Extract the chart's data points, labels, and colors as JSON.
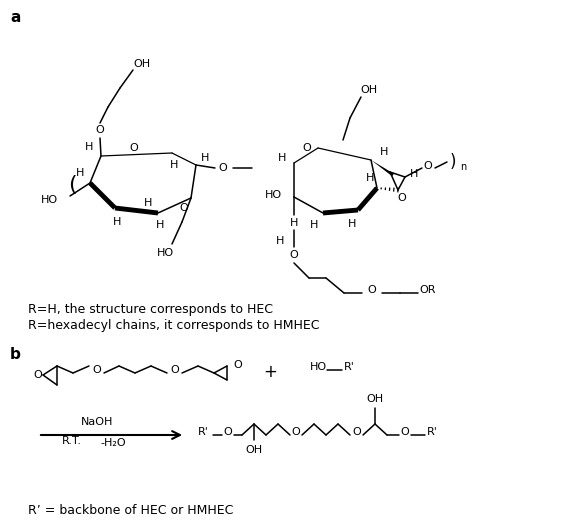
{
  "fig_width": 5.63,
  "fig_height": 5.23,
  "dpi": 100,
  "bg_color": "#ffffff",
  "line_color": "#000000",
  "text_color": "#000000",
  "caption_line1": "R=H, the structure corresponds to HEC",
  "caption_line2": "R=hexadecyl chains, it corresponds to HMHEC",
  "caption_b": "R’ = backbone of HEC or HMHEC"
}
